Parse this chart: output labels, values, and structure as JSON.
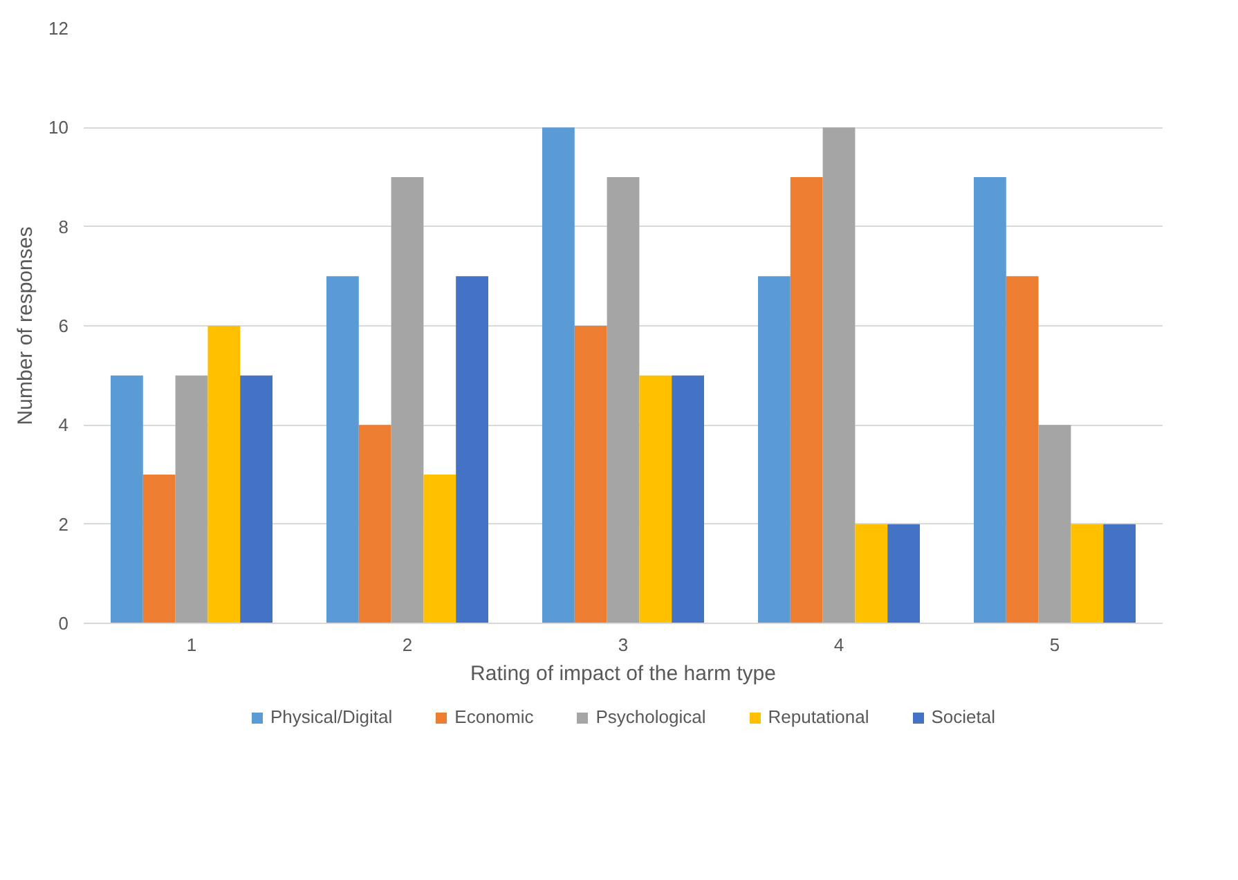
{
  "chart_data": {
    "type": "bar",
    "xlabel": "Rating of impact of the harm type",
    "ylabel": "Number of responses",
    "categories": [
      "1",
      "2",
      "3",
      "4",
      "5"
    ],
    "series": [
      {
        "name": "Physical/Digital",
        "color": "#5b9bd5",
        "values": [
          5,
          7,
          10,
          7,
          9
        ]
      },
      {
        "name": "Economic",
        "color": "#ed7d31",
        "values": [
          3,
          4,
          6,
          9,
          7
        ]
      },
      {
        "name": "Psychological",
        "color": "#a5a5a5",
        "values": [
          5,
          9,
          9,
          10,
          4
        ]
      },
      {
        "name": "Reputational",
        "color": "#ffc000",
        "values": [
          6,
          3,
          5,
          2,
          2
        ]
      },
      {
        "name": "Societal",
        "color": "#4472c4",
        "values": [
          5,
          7,
          5,
          2,
          2
        ]
      }
    ],
    "ylim": [
      0,
      12
    ],
    "yticks": [
      0,
      2,
      4,
      6,
      8,
      10,
      12
    ],
    "grid": "y",
    "legend": "bottom"
  }
}
